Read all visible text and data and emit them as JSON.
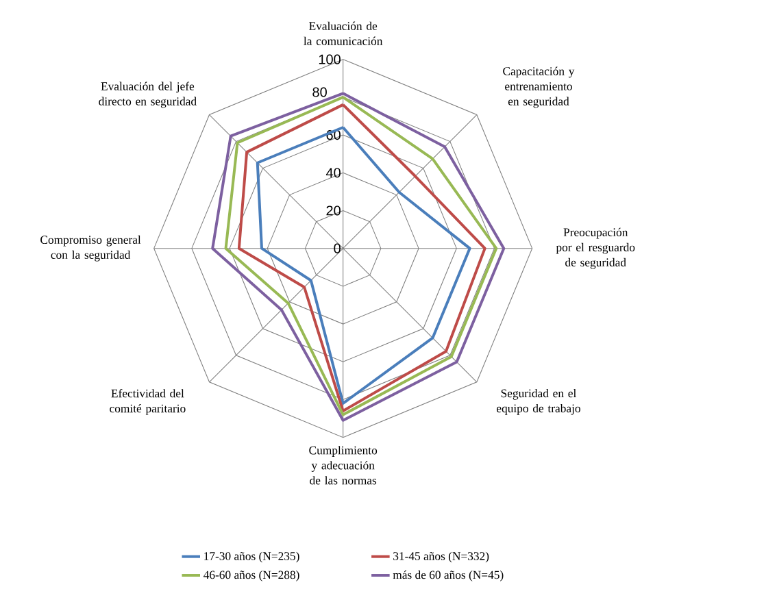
{
  "chart_data": {
    "type": "radar",
    "categories": [
      "Evaluación de la comunicación",
      "Capacitación y entrenamiento en seguridad",
      "Preocupación por el resguardo de seguridad",
      "Seguridad en el equipo de trabajo",
      "Cumplimiento y adecuación de las normas",
      "Efectividad del comité paritario",
      "Compromiso general con la seguridad",
      "Evaluación del jefe directo en seguridad"
    ],
    "series": [
      {
        "name": "17-30 años (N=235)",
        "color": "#4a7ebb",
        "values": [
          64,
          42,
          67,
          67,
          82,
          24,
          43,
          64
        ]
      },
      {
        "name": "31-45 años (N=332)",
        "color": "#be4b48",
        "values": [
          76,
          54,
          75,
          77,
          86,
          29,
          55,
          72
        ]
      },
      {
        "name": "46-60 años (N=288)",
        "color": "#98b954",
        "values": [
          80,
          67,
          81,
          81,
          88,
          41,
          62,
          79
        ]
      },
      {
        "name": "más de 60 años (N=45)",
        "color": "#7d60a0",
        "values": [
          82,
          76,
          85,
          85,
          91,
          46,
          69,
          84
        ]
      }
    ],
    "ylim": [
      0,
      100
    ],
    "yticks": [
      0,
      20,
      40,
      60,
      80,
      100
    ],
    "grid": true,
    "legend": "bottom"
  }
}
